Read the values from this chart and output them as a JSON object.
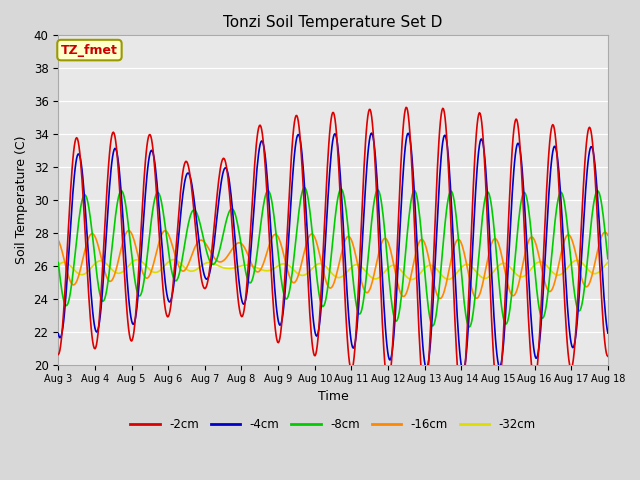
{
  "title": "Tonzi Soil Temperature Set D",
  "xlabel": "Time",
  "ylabel": "Soil Temperature (C)",
  "ylim": [
    20,
    40
  ],
  "x_tick_labels": [
    "Aug 3",
    "Aug 4",
    "Aug 5",
    "Aug 6",
    "Aug 7",
    "Aug 8",
    "Aug 9",
    "Aug 10",
    "Aug 11",
    "Aug 12",
    "Aug 13",
    "Aug 14",
    "Aug 15",
    "Aug 16",
    "Aug 17",
    "Aug 18"
  ],
  "bg_color": "#d8d8d8",
  "plot_bg_color": "#e8e8e8",
  "series": {
    "-2cm": {
      "color": "#dd0000",
      "lw": 1.2
    },
    "-4cm": {
      "color": "#0000cc",
      "lw": 1.2
    },
    "-8cm": {
      "color": "#00cc00",
      "lw": 1.2
    },
    "-16cm": {
      "color": "#ff8800",
      "lw": 1.2
    },
    "-32cm": {
      "color": "#dddd00",
      "lw": 1.2
    }
  },
  "annotation_text": "TZ_fmet",
  "annotation_color": "#cc0000",
  "annotation_bg": "#ffffcc",
  "annotation_border": "#999900"
}
